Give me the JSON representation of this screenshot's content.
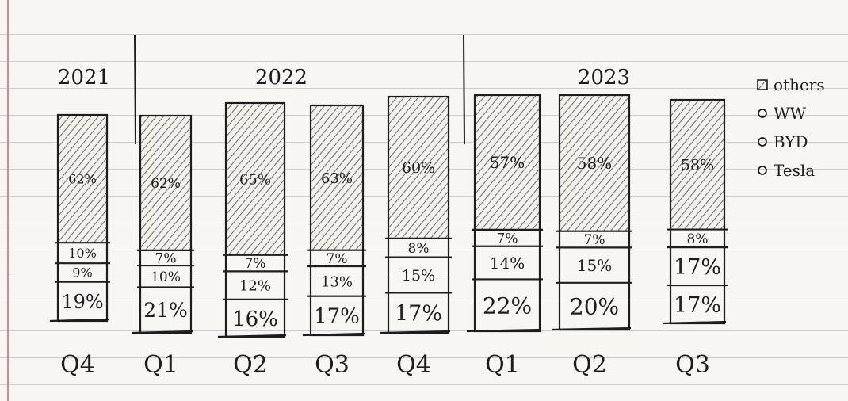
{
  "chart_data": {
    "type": "bar",
    "stacked": true,
    "unit": "%",
    "year_groups": [
      {
        "label": "2021",
        "quarters": [
          "Q4"
        ]
      },
      {
        "label": "2022",
        "quarters": [
          "Q1",
          "Q2",
          "Q3",
          "Q4"
        ]
      },
      {
        "label": "2023",
        "quarters": [
          "Q1",
          "Q2",
          "Q3"
        ]
      }
    ],
    "categories": [
      "Q4",
      "Q1",
      "Q2",
      "Q3",
      "Q4",
      "Q1",
      "Q2",
      "Q3"
    ],
    "bars": [
      {
        "quarter": "Q4",
        "year": "2021",
        "segments": [
          {
            "value": 19,
            "label": "19%"
          },
          {
            "value": 9,
            "label": "9%"
          },
          {
            "value": 10,
            "label": "10%"
          },
          {
            "value": 62,
            "label": "62%"
          }
        ]
      },
      {
        "quarter": "Q1",
        "year": "2022",
        "segments": [
          {
            "value": 21,
            "label": "21%"
          },
          {
            "value": 10,
            "label": "10%"
          },
          {
            "value": 7,
            "label": "7%"
          },
          {
            "value": 62,
            "label": "62%"
          }
        ]
      },
      {
        "quarter": "Q2",
        "year": "2022",
        "segments": [
          {
            "value": 16,
            "label": "16%"
          },
          {
            "value": 12,
            "label": "12%"
          },
          {
            "value": 7,
            "label": "7%"
          },
          {
            "value": 65,
            "label": "65%"
          }
        ]
      },
      {
        "quarter": "Q3",
        "year": "2022",
        "segments": [
          {
            "value": 17,
            "label": "17%"
          },
          {
            "value": 13,
            "label": "13%"
          },
          {
            "value": 7,
            "label": "7%"
          },
          {
            "value": 63,
            "label": "63%"
          }
        ]
      },
      {
        "quarter": "Q4",
        "year": "2022",
        "segments": [
          {
            "value": 17,
            "label": "17%"
          },
          {
            "value": 15,
            "label": "15%"
          },
          {
            "value": 8,
            "label": "8%"
          },
          {
            "value": 60,
            "label": "60%"
          }
        ]
      },
      {
        "quarter": "Q1",
        "year": "2023",
        "segments": [
          {
            "value": 22,
            "label": "22%"
          },
          {
            "value": 14,
            "label": "14%"
          },
          {
            "value": 7,
            "label": "7%"
          },
          {
            "value": 57,
            "label": "57%"
          }
        ]
      },
      {
        "quarter": "Q2",
        "year": "2023",
        "segments": [
          {
            "value": 20,
            "label": "20%"
          },
          {
            "value": 15,
            "label": "15%"
          },
          {
            "value": 7,
            "label": "7%"
          },
          {
            "value": 58,
            "label": "58%"
          }
        ]
      },
      {
        "quarter": "Q3",
        "year": "2023",
        "segments": [
          {
            "value": 17,
            "label": "17%"
          },
          {
            "value": 17,
            "label": "17%"
          },
          {
            "value": 8,
            "label": "8%"
          },
          {
            "value": 58,
            "label": "58%"
          }
        ]
      }
    ],
    "legend": {
      "placement": "top-right",
      "items": [
        {
          "marker": "hatched-square",
          "label": "others"
        },
        {
          "marker": "circle",
          "label": "WW"
        },
        {
          "marker": "circle",
          "label": "BYD"
        },
        {
          "marker": "circle",
          "label": "Tesla"
        }
      ]
    },
    "top_segment_style": "hatched",
    "colors": {
      "ink": "#1d1d1d",
      "paper": "#f7f6f2",
      "rule": "#c9cdd6",
      "margin": "#d9868c"
    }
  }
}
